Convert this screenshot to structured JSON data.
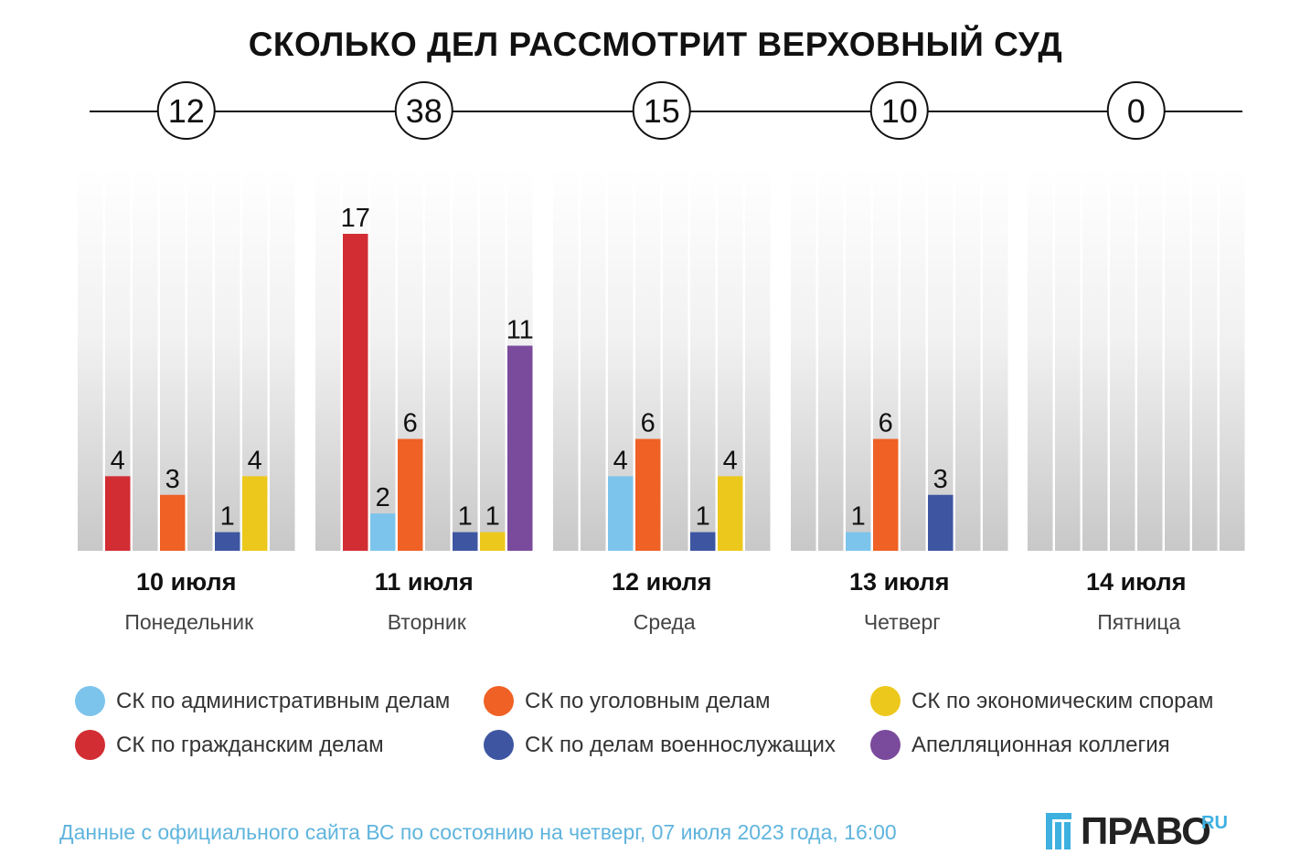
{
  "chart_data": {
    "type": "bar",
    "title": "СКОЛЬКО ДЕЛ РАССМОТРИТ ВЕРХОВНЫЙ СУД",
    "categories": [
      "10 июля",
      "11 июля",
      "12 июля",
      "13 июля",
      "14 июля"
    ],
    "weekdays": [
      "Понедельник",
      "Вторник",
      "Среда",
      "Четверг",
      "Пятница"
    ],
    "totals": [
      12,
      38,
      15,
      10,
      0
    ],
    "ylim": [
      0,
      18
    ],
    "series": [
      {
        "name": "СК по административным делам",
        "color": "#7cc4ec",
        "values": [
          0,
          2,
          4,
          1,
          0
        ]
      },
      {
        "name": "СК по гражданским делам",
        "color": "#d12d33",
        "values": [
          4,
          17,
          0,
          0,
          0
        ]
      },
      {
        "name": "СК по уголовным делам",
        "color": "#ef6125",
        "values": [
          3,
          6,
          6,
          6,
          0
        ]
      },
      {
        "name": "СК по делам военнослужащих",
        "color": "#3e56a2",
        "values": [
          1,
          1,
          1,
          3,
          0
        ]
      },
      {
        "name": "СК по экономическим спорам",
        "color": "#edc81c",
        "values": [
          4,
          1,
          4,
          0,
          0
        ]
      },
      {
        "name": "Апелляционная коллегия",
        "color": "#7a4a9c",
        "values": [
          0,
          11,
          0,
          0,
          0
        ]
      }
    ]
  },
  "source_text": "Данные с официального сайта ВС по состоянию на четверг, 07 июля 2023 года, 16:00",
  "logo": {
    "text": "ПРАВО",
    "suffix": "RU"
  }
}
